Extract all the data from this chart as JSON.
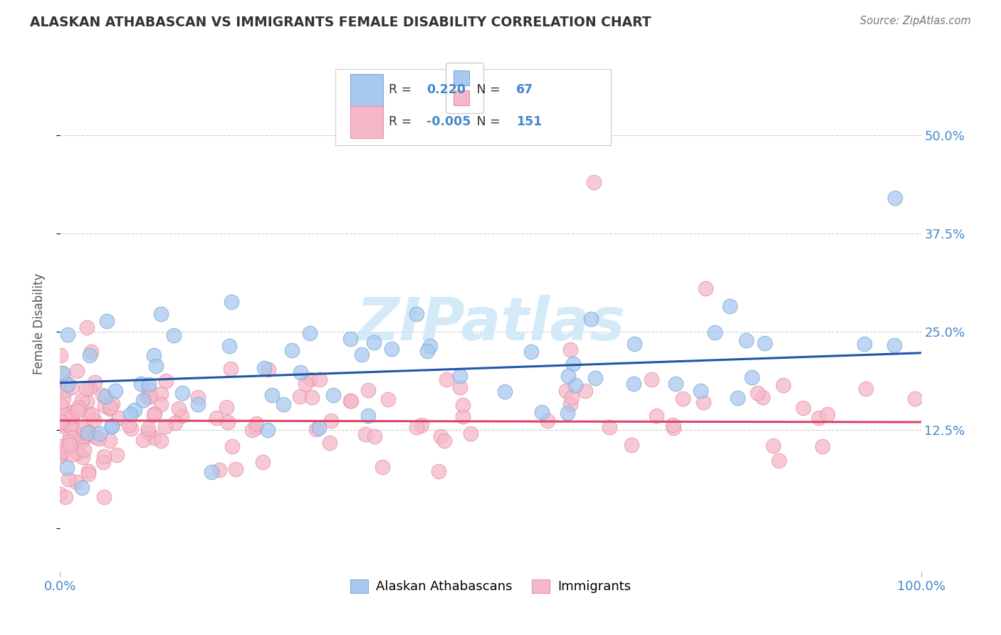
{
  "title": "ALASKAN ATHABASCAN VS IMMIGRANTS FEMALE DISABILITY CORRELATION CHART",
  "source": "Source: ZipAtlas.com",
  "ylabel": "Female Disability",
  "xlim": [
    0.0,
    1.0
  ],
  "ylim": [
    -0.055,
    0.575
  ],
  "yticks": [
    0.0,
    0.125,
    0.25,
    0.375,
    0.5
  ],
  "ytick_labels": [
    "",
    "12.5%",
    "25.0%",
    "37.5%",
    "50.0%"
  ],
  "xticks": [
    0.0,
    1.0
  ],
  "xtick_labels": [
    "0.0%",
    "100.0%"
  ],
  "grid_yticks": [
    0.125,
    0.25,
    0.375,
    0.5
  ],
  "legend_line1": "R =  0.220   N =  67",
  "legend_line2": "R = -0.005   N = 151",
  "blue_color": "#A8C8F0",
  "pink_color": "#F5B8C8",
  "blue_edge": "#7AAAD0",
  "pink_edge": "#E890A8",
  "line_blue_color": "#2255AA",
  "line_pink_color": "#DD4466",
  "watermark_color": "#D0E8F8",
  "tick_color": "#4488CC",
  "background_color": "#FFFFFF",
  "blue_r": "0.220",
  "blue_n": "67",
  "pink_r": "-0.005",
  "pink_n": "151",
  "blue_intercept": 0.185,
  "blue_slope": 0.038,
  "pink_intercept": 0.137,
  "pink_slope": -0.002
}
